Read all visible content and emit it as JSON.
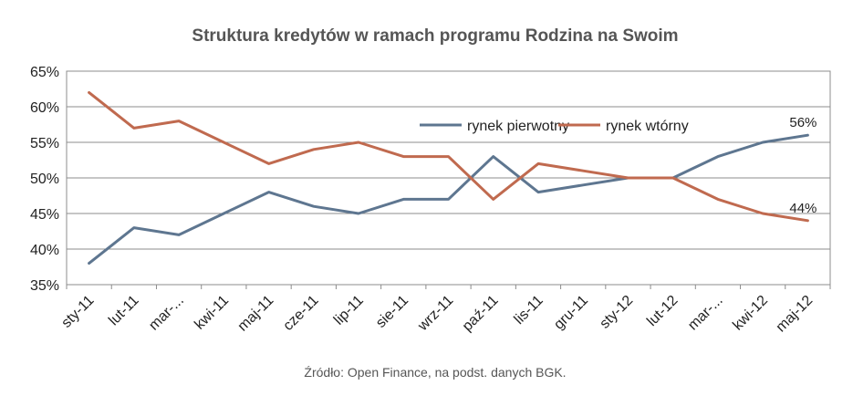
{
  "chart_data": {
    "type": "line",
    "title": "Struktura kredytów w ramach programu Rodzina na Swoim",
    "source": "Źródło: Open Finance, na podst. danych BGK.",
    "categories": [
      "sty-11",
      "lut-11",
      "mar-...",
      "kwi-11",
      "maj-11",
      "cze-11",
      "lip-11",
      "sie-11",
      "wrz-11",
      "paź-11",
      "lis-11",
      "gru-11",
      "sty-12",
      "lut-12",
      "mar-...",
      "kwi-12",
      "maj-12"
    ],
    "ylim": [
      35,
      65
    ],
    "yticks": [
      35,
      40,
      45,
      50,
      55,
      60,
      65
    ],
    "ytick_labels": [
      "35%",
      "40%",
      "45%",
      "50%",
      "55%",
      "60%",
      "65%"
    ],
    "grid": true,
    "legend_position": "top-right",
    "series": [
      {
        "name": "rynek pierwotny",
        "color": "#5e7690",
        "values": [
          38,
          43,
          42,
          45,
          48,
          46,
          45,
          47,
          47,
          53,
          48,
          49,
          50,
          50,
          53,
          55,
          56
        ],
        "end_label": "56%"
      },
      {
        "name": "rynek wtórny",
        "color": "#c06a4f",
        "values": [
          62,
          57,
          58,
          55,
          52,
          54,
          55,
          53,
          53,
          47,
          52,
          51,
          50,
          50,
          47,
          45,
          44
        ],
        "end_label": "44%"
      }
    ]
  }
}
